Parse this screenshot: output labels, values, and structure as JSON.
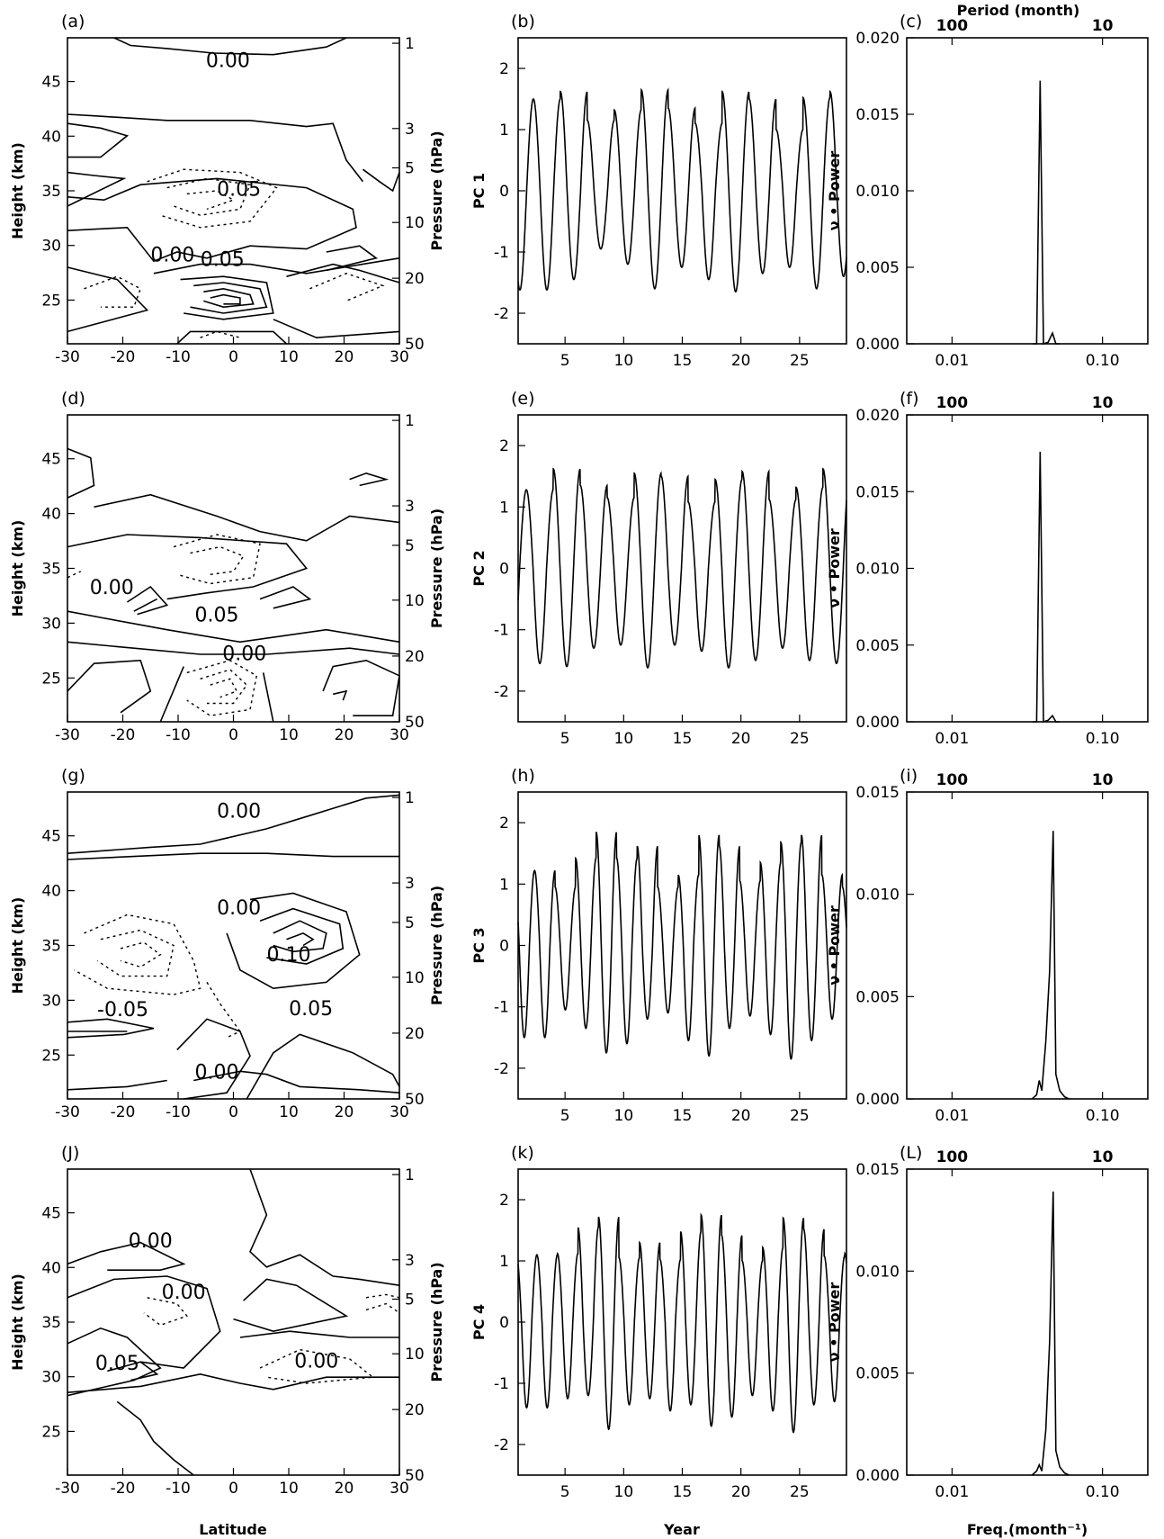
{
  "figure": {
    "x_label_contour": "Latitude",
    "x_label_pc": "Year",
    "x_label_spectrum": "Freq.(month⁻¹)",
    "top_axis_label": "Period (month)"
  },
  "chart_data": [
    {
      "type": "contour",
      "panel": "(a)",
      "xlabel": "",
      "ylabel": "Height (km)",
      "y2label": "Pressure (hPa)",
      "xlim": [
        -30,
        30
      ],
      "ylim": [
        21,
        49
      ],
      "xticks": [
        -30,
        -20,
        -10,
        0,
        10,
        20,
        30
      ],
      "yticks": [
        25,
        30,
        35,
        40,
        45
      ],
      "pressure_ticks": [
        {
          "label": "1",
          "km": 48.5
        },
        {
          "label": "3",
          "km": 40.7
        },
        {
          "label": "5",
          "km": 37.1
        },
        {
          "label": "10",
          "km": 32.1
        },
        {
          "label": "20",
          "km": 27.0
        },
        {
          "label": "50",
          "km": 20.9
        }
      ],
      "contour_labels": [
        {
          "text": "0.00",
          "lat": -1,
          "z": 47
        },
        {
          "text": "0.05",
          "lat": 1,
          "z": 35.2
        },
        {
          "text": "0.00",
          "lat": -11,
          "z": 29.2
        },
        {
          "text": "0.05",
          "lat": -2,
          "z": 28.8
        }
      ]
    },
    {
      "type": "line",
      "panel": "(b)",
      "xlabel": "",
      "ylabel": "PC 1",
      "xlim": [
        1,
        29
      ],
      "ylim": [
        -2.5,
        2.5
      ],
      "xticks": [
        5,
        10,
        15,
        20,
        25
      ],
      "yticks": [
        -2,
        -1,
        0,
        1,
        2
      ],
      "period_years": 2.3,
      "phase_year": 2.3,
      "peaks": [
        1.5,
        1.62,
        1.15,
        1.32,
        1.65,
        1.35,
        1.1,
        1.62,
        1.5,
        1.0,
        1.52,
        1.62
      ],
      "troughs": [
        -1.62,
        -1.45,
        -0.95,
        -1.2,
        -1.6,
        -1.25,
        -1.45,
        -1.65,
        -1.35,
        -1.25,
        -1.6,
        -1.4
      ]
    },
    {
      "type": "line",
      "panel": "(c)",
      "xlabel": "",
      "ylabel": "ν • Power",
      "xscale": "log",
      "xlim": [
        0.005,
        0.2
      ],
      "ylim": [
        0,
        0.02
      ],
      "xticks": [
        {
          "label": "0.01",
          "value": 0.01
        },
        {
          "label": "0.10",
          "value": 0.1
        }
      ],
      "yticks": [
        0.0,
        0.005,
        0.01,
        0.015,
        0.02
      ],
      "ytick_labels": [
        "0.000",
        "0.005",
        "0.010",
        "0.015",
        "0.020"
      ],
      "period_ticks": [
        {
          "label": "100",
          "value": 0.01
        },
        {
          "label": "10",
          "value": 0.1
        }
      ],
      "x": [
        0.0345,
        0.0365,
        0.0385,
        0.0405,
        0.0435,
        0.0465,
        0.049,
        0.052
      ],
      "y": [
        0.0,
        0.0,
        0.0172,
        0.0,
        0.0001,
        0.0007,
        0.0,
        0.0
      ]
    },
    {
      "type": "contour",
      "panel": "(d)",
      "xlabel": "",
      "ylabel": "Height (km)",
      "y2label": "Pressure (hPa)",
      "xlim": [
        -30,
        30
      ],
      "ylim": [
        21,
        49
      ],
      "xticks": [
        -30,
        -20,
        -10,
        0,
        10,
        20,
        30
      ],
      "yticks": [
        25,
        30,
        35,
        40,
        45
      ],
      "pressure_ticks": [
        {
          "label": "1",
          "km": 48.5
        },
        {
          "label": "3",
          "km": 40.7
        },
        {
          "label": "5",
          "km": 37.1
        },
        {
          "label": "10",
          "km": 32.1
        },
        {
          "label": "20",
          "km": 27.0
        },
        {
          "label": "50",
          "km": 20.9
        }
      ],
      "contour_labels": [
        {
          "text": "0.00",
          "lat": -22,
          "z": 33.3
        },
        {
          "text": "0.05",
          "lat": -3,
          "z": 30.8
        },
        {
          "text": "0.00",
          "lat": 2,
          "z": 27.3
        }
      ]
    },
    {
      "type": "line",
      "panel": "(e)",
      "xlabel": "",
      "ylabel": "PC 2",
      "xlim": [
        1,
        29
      ],
      "ylim": [
        -2.5,
        2.5
      ],
      "xticks": [
        5,
        10,
        15,
        20,
        25
      ],
      "yticks": [
        -2,
        -1,
        0,
        1,
        2
      ],
      "period_years": 2.3,
      "phase_year": 1.7,
      "peaks": [
        1.28,
        1.62,
        1.35,
        1.15,
        1.55,
        1.5,
        1.08,
        1.45,
        1.58,
        1.12,
        1.32,
        1.62
      ],
      "troughs": [
        -1.55,
        -1.6,
        -1.3,
        -1.25,
        -1.62,
        -1.25,
        -1.35,
        -1.62,
        -1.5,
        -1.3,
        -1.5,
        -1.55
      ]
    },
    {
      "type": "line",
      "panel": "(f)",
      "xlabel": "",
      "ylabel": "ν • Power",
      "xscale": "log",
      "xlim": [
        0.005,
        0.2
      ],
      "ylim": [
        0,
        0.02
      ],
      "xticks": [
        {
          "label": "0.01",
          "value": 0.01
        },
        {
          "label": "0.10",
          "value": 0.1
        }
      ],
      "yticks": [
        0.0,
        0.005,
        0.01,
        0.015,
        0.02
      ],
      "ytick_labels": [
        "0.000",
        "0.005",
        "0.010",
        "0.015",
        "0.020"
      ],
      "period_ticks": [
        {
          "label": "100",
          "value": 0.01
        },
        {
          "label": "10",
          "value": 0.1
        }
      ],
      "x": [
        0.0345,
        0.0365,
        0.0385,
        0.0405,
        0.0435,
        0.0465,
        0.049,
        0.052
      ],
      "y": [
        0.0,
        0.0,
        0.0176,
        0.0,
        0.0001,
        0.0004,
        0.0,
        0.0
      ]
    },
    {
      "type": "contour",
      "panel": "(g)",
      "xlabel": "",
      "ylabel": "Height (km)",
      "y2label": "Pressure (hPa)",
      "xlim": [
        -30,
        30
      ],
      "ylim": [
        21,
        49
      ],
      "xticks": [
        -30,
        -20,
        -10,
        0,
        10,
        20,
        30
      ],
      "yticks": [
        25,
        30,
        35,
        40,
        45
      ],
      "pressure_ticks": [
        {
          "label": "1",
          "km": 48.5
        },
        {
          "label": "3",
          "km": 40.7
        },
        {
          "label": "5",
          "km": 37.1
        },
        {
          "label": "10",
          "km": 32.1
        },
        {
          "label": "20",
          "km": 27.0
        },
        {
          "label": "50",
          "km": 20.9
        }
      ],
      "contour_labels": [
        {
          "text": "0.00",
          "lat": 1,
          "z": 47.3
        },
        {
          "text": "0.00",
          "lat": 1,
          "z": 38.5
        },
        {
          "text": "0.10",
          "lat": 10,
          "z": 34.2
        },
        {
          "text": "-0.05",
          "lat": -20,
          "z": 29.2
        },
        {
          "text": "0.05",
          "lat": 14,
          "z": 29.3
        },
        {
          "text": "0.00",
          "lat": -3,
          "z": 23.5
        }
      ]
    },
    {
      "type": "line",
      "panel": "(h)",
      "xlabel": "",
      "ylabel": "PC 3",
      "xlim": [
        1,
        29
      ],
      "ylim": [
        -2.5,
        2.5
      ],
      "xticks": [
        5,
        10,
        15,
        20,
        25
      ],
      "yticks": [
        -2,
        -1,
        0,
        1,
        2
      ],
      "period_years": 1.75,
      "phase_year": 2.4,
      "peaks": [
        1.22,
        0.95,
        1.42,
        1.85,
        1.42,
        1.62,
        0.95,
        1.15,
        1.8,
        1.62,
        1.05,
        1.35,
        1.68,
        1.8,
        1.15,
        0.95
      ],
      "troughs": [
        -1.5,
        -1.05,
        -1.35,
        -1.75,
        -1.6,
        -1.2,
        -1.1,
        -1.55,
        -1.8,
        -1.35,
        -1.15,
        -1.45,
        -1.85,
        -1.55,
        -1.2,
        -1.4
      ]
    },
    {
      "type": "line",
      "panel": "(i)",
      "xlabel": "",
      "ylabel": "ν • Power",
      "xscale": "log",
      "xlim": [
        0.005,
        0.2
      ],
      "ylim": [
        0,
        0.015
      ],
      "xticks": [
        {
          "label": "0.01",
          "value": 0.01
        },
        {
          "label": "0.10",
          "value": 0.1
        }
      ],
      "yticks": [
        0.0,
        0.005,
        0.01,
        0.015
      ],
      "ytick_labels": [
        "0.000",
        "0.005",
        "0.010",
        "0.015"
      ],
      "period_ticks": [
        {
          "label": "100",
          "value": 0.01
        },
        {
          "label": "10",
          "value": 0.1
        }
      ],
      "x": [
        0.034,
        0.0365,
        0.038,
        0.0395,
        0.042,
        0.0445,
        0.047,
        0.049,
        0.052,
        0.056,
        0.06
      ],
      "y": [
        0.0,
        0.0002,
        0.0009,
        0.0004,
        0.0028,
        0.0062,
        0.0131,
        0.0012,
        0.0004,
        0.0001,
        0.0
      ]
    },
    {
      "type": "contour",
      "panel": "(J)",
      "xlabel": "Latitude",
      "ylabel": "Height (km)",
      "y2label": "Pressure (hPa)",
      "xlim": [
        -30,
        30
      ],
      "ylim": [
        21,
        49
      ],
      "xticks": [
        -30,
        -20,
        -10,
        0,
        10,
        20,
        30
      ],
      "yticks": [
        25,
        30,
        35,
        40,
        45
      ],
      "pressure_ticks": [
        {
          "label": "1",
          "km": 48.5
        },
        {
          "label": "3",
          "km": 40.7
        },
        {
          "label": "5",
          "km": 37.1
        },
        {
          "label": "10",
          "km": 32.1
        },
        {
          "label": "20",
          "km": 27.0
        },
        {
          "label": "50",
          "km": 20.9
        }
      ],
      "contour_labels": [
        {
          "text": "0.00",
          "lat": -15,
          "z": 42.5
        },
        {
          "text": "0.00",
          "lat": -9,
          "z": 37.8
        },
        {
          "text": "0.05",
          "lat": -21,
          "z": 31.3
        },
        {
          "text": "0.00",
          "lat": 15,
          "z": 31.5
        }
      ]
    },
    {
      "type": "line",
      "panel": "(k)",
      "xlabel": "Year",
      "ylabel": "PC 4",
      "xlim": [
        1,
        29
      ],
      "ylim": [
        -2.5,
        2.5
      ],
      "xticks": [
        5,
        10,
        15,
        20,
        25
      ],
      "yticks": [
        -2,
        -1,
        0,
        1,
        2
      ],
      "period_years": 1.75,
      "phase_year": 2.6,
      "peaks": [
        1.1,
        1.12,
        1.55,
        1.72,
        1.05,
        1.3,
        1.02,
        1.48,
        1.75,
        1.42,
        1.0,
        1.22,
        1.7,
        1.52,
        1.08,
        1.12
      ],
      "troughs": [
        -1.4,
        -1.25,
        -1.2,
        -1.75,
        -1.35,
        -1.25,
        -1.45,
        -1.35,
        -1.7,
        -1.55,
        -1.2,
        -1.45,
        -1.8,
        -1.35,
        -1.3,
        -1.45
      ]
    },
    {
      "type": "line",
      "panel": "(L)",
      "xlabel": "Freq.(month⁻¹)",
      "ylabel": "ν • Power",
      "xscale": "log",
      "xlim": [
        0.005,
        0.2
      ],
      "ylim": [
        0,
        0.015
      ],
      "xticks": [
        {
          "label": "0.01",
          "value": 0.01
        },
        {
          "label": "0.10",
          "value": 0.1
        }
      ],
      "yticks": [
        0.0,
        0.005,
        0.01,
        0.015
      ],
      "ytick_labels": [
        "0.000",
        "0.005",
        "0.010",
        "0.015"
      ],
      "period_ticks": [
        {
          "label": "100",
          "value": 0.01
        },
        {
          "label": "10",
          "value": 0.1
        }
      ],
      "x": [
        0.034,
        0.0365,
        0.038,
        0.0395,
        0.042,
        0.0445,
        0.047,
        0.049,
        0.052,
        0.056,
        0.06
      ],
      "y": [
        0.0,
        0.0002,
        0.0005,
        0.0002,
        0.0022,
        0.0065,
        0.0139,
        0.0012,
        0.0004,
        0.0001,
        0.0
      ]
    }
  ]
}
